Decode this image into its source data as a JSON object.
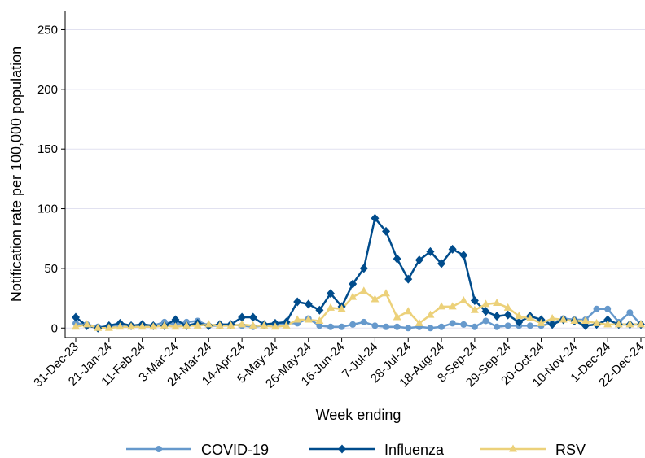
{
  "chart_data": {
    "type": "line",
    "y_label": "Notification rate per 100,000 population",
    "x_label": "Week ending",
    "categories": [
      "31-Dec-23",
      null,
      null,
      "21-Jan-24",
      null,
      null,
      "11-Feb-24",
      null,
      null,
      "3-Mar-24",
      null,
      null,
      "24-Mar-24",
      null,
      null,
      "14-Apr-24",
      null,
      null,
      "5-May-24",
      null,
      null,
      "26-May-24",
      null,
      null,
      "16-Jun-24",
      null,
      null,
      "7-Jul-24",
      null,
      null,
      "28-Jul-24",
      null,
      null,
      "18-Aug-24",
      null,
      null,
      "8-Sep-24",
      null,
      null,
      "29-Sep-24",
      null,
      null,
      "20-Oct-24",
      null,
      null,
      "10-Nov-24",
      null,
      null,
      "1-Dec-24",
      null,
      null,
      "22-Dec-24"
    ],
    "series": [
      {
        "name": "COVID-19",
        "color": "#6699cc",
        "marker": "circle",
        "values": [
          4,
          3,
          1,
          1,
          2,
          2,
          3,
          2,
          5,
          3,
          5,
          6,
          2,
          2,
          3,
          2,
          1,
          2,
          3,
          4,
          4,
          8,
          2,
          1,
          1,
          3,
          5,
          2,
          1,
          1,
          0,
          1,
          0,
          1,
          4,
          3,
          1,
          6,
          1,
          2,
          2,
          2,
          2,
          4,
          8,
          7,
          7,
          16,
          16,
          5,
          13,
          3
        ]
      },
      {
        "name": "Influenza",
        "color": "#004c8c",
        "marker": "diamond",
        "values": [
          9,
          2,
          0,
          2,
          4,
          2,
          3,
          2,
          2,
          7,
          2,
          4,
          2,
          3,
          3,
          9,
          9,
          3,
          4,
          5,
          22,
          20,
          15,
          29,
          18,
          37,
          50,
          92,
          81,
          58,
          41,
          57,
          64,
          54,
          66,
          61,
          23,
          14,
          10,
          11,
          5,
          10,
          7,
          3,
          7,
          6,
          2,
          3,
          7,
          3,
          3,
          3
        ]
      },
      {
        "name": "RSV",
        "color": "#ecd17a",
        "marker": "triangle",
        "values": [
          1,
          3,
          0,
          0,
          1,
          1,
          1,
          1,
          2,
          1,
          2,
          2,
          3,
          2,
          2,
          3,
          2,
          2,
          1,
          2,
          7,
          7,
          6,
          17,
          16,
          26,
          31,
          24,
          29,
          9,
          14,
          4,
          11,
          18,
          18,
          23,
          15,
          20,
          21,
          17,
          10,
          8,
          4,
          8,
          7,
          6,
          6,
          4,
          3,
          3,
          3,
          3
        ]
      }
    ],
    "ylim": [
      -8,
      266
    ],
    "yticks": [
      0,
      50,
      100,
      150,
      200,
      250
    ],
    "grid": true
  }
}
